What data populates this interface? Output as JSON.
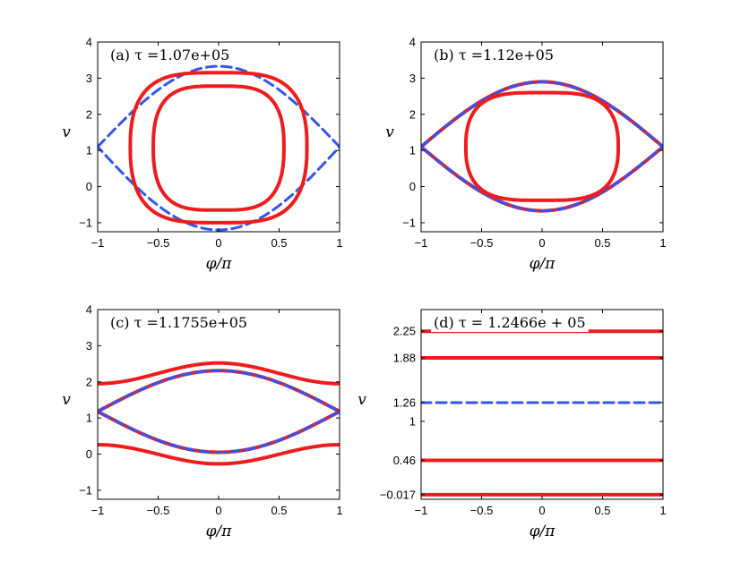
{
  "chart_data": [
    {
      "type": "line",
      "title": "(a) τ =1.07e+05",
      "xlabel": "φ/π",
      "ylabel": "v",
      "xlim": [
        -1,
        1
      ],
      "ylim": [
        -1.25,
        4
      ],
      "xticks": [
        "-1",
        "-0.5",
        "0",
        "0.5",
        "1"
      ],
      "yticks": [
        "-1",
        "0",
        "1",
        "2",
        "3",
        "4"
      ],
      "grid": false,
      "series": [
        {
          "style": "dashed",
          "color": "#3355ee",
          "type": "separatrix",
          "top": 3.33,
          "bottom": -1.2,
          "edge": 1.1
        },
        {
          "style": "solid",
          "color": "#ee1c1c",
          "type": "closed",
          "xmax": 0.73,
          "center": 1.1,
          "top": 3.15,
          "bottom": -1.0
        },
        {
          "style": "solid",
          "color": "#ee1c1c",
          "type": "closed",
          "xmax": 0.54,
          "center": 1.1,
          "top": 2.78,
          "bottom": -0.65
        }
      ]
    },
    {
      "type": "line",
      "title": "(b) τ =1.12e+05",
      "xlabel": "φ/π",
      "ylabel": "v",
      "xlim": [
        -1,
        1
      ],
      "ylim": [
        -1.25,
        4
      ],
      "xticks": [
        "-1",
        "-0.5",
        "0",
        "0.5",
        "1"
      ],
      "yticks": [
        "-1",
        "0",
        "1",
        "2",
        "3",
        "4"
      ],
      "grid": false,
      "series": [
        {
          "style": "solid",
          "color": "#ee1c1c",
          "type": "separatrix",
          "top": 2.9,
          "bottom": -0.67,
          "edge": 1.1
        },
        {
          "style": "dashed",
          "color": "#3355ee",
          "type": "separatrix",
          "top": 2.9,
          "bottom": -0.67,
          "edge": 1.1
        },
        {
          "style": "solid",
          "color": "#ee1c1c",
          "type": "closed",
          "xmax": 0.63,
          "center": 1.1,
          "top": 2.6,
          "bottom": -0.38
        }
      ]
    },
    {
      "type": "line",
      "title": "(c) τ =1.1755e+05",
      "xlabel": "φ/π",
      "ylabel": "v",
      "xlim": [
        -1,
        1
      ],
      "ylim": [
        -1.25,
        4
      ],
      "xticks": [
        "-1",
        "-0.5",
        "0",
        "0.5",
        "1"
      ],
      "yticks": [
        "-1",
        "0",
        "1",
        "2",
        "3",
        "4"
      ],
      "grid": false,
      "series": [
        {
          "style": "solid",
          "color": "#ee1c1c",
          "type": "wave",
          "edge": 1.95,
          "center": 2.52
        },
        {
          "style": "solid",
          "color": "#ee1c1c",
          "type": "wave",
          "edge": 0.26,
          "center": -0.27
        },
        {
          "style": "solid",
          "color": "#ee1c1c",
          "type": "separatrix",
          "top": 2.31,
          "bottom": 0.05,
          "edge": 1.18
        },
        {
          "style": "dashed",
          "color": "#3355ee",
          "type": "separatrix",
          "top": 2.31,
          "bottom": 0.05,
          "edge": 1.18
        }
      ]
    },
    {
      "type": "line",
      "title": "(d) τ = 1.2466e + 05",
      "xlabel": "φ/π",
      "ylabel": "v",
      "xlim": [
        -1,
        1
      ],
      "ylim": [
        -0.08,
        2.55
      ],
      "xticks": [
        "-1",
        "-0.5",
        "0",
        "0.5",
        "1"
      ],
      "yticks": [
        "-0.017",
        "0.46",
        "1",
        "1.26",
        "1.88",
        "2.25"
      ],
      "grid": false,
      "series": [
        {
          "style": "solid",
          "color": "#ee1c1c",
          "type": "hline",
          "value": 2.25
        },
        {
          "style": "solid",
          "color": "#ee1c1c",
          "type": "hline",
          "value": 1.88
        },
        {
          "style": "dashed",
          "color": "#3355ee",
          "type": "hline",
          "value": 1.26
        },
        {
          "style": "solid",
          "color": "#ee1c1c",
          "type": "hline",
          "value": 0.46
        },
        {
          "style": "solid",
          "color": "#ee1c1c",
          "type": "hline",
          "value": -0.017
        }
      ]
    }
  ]
}
